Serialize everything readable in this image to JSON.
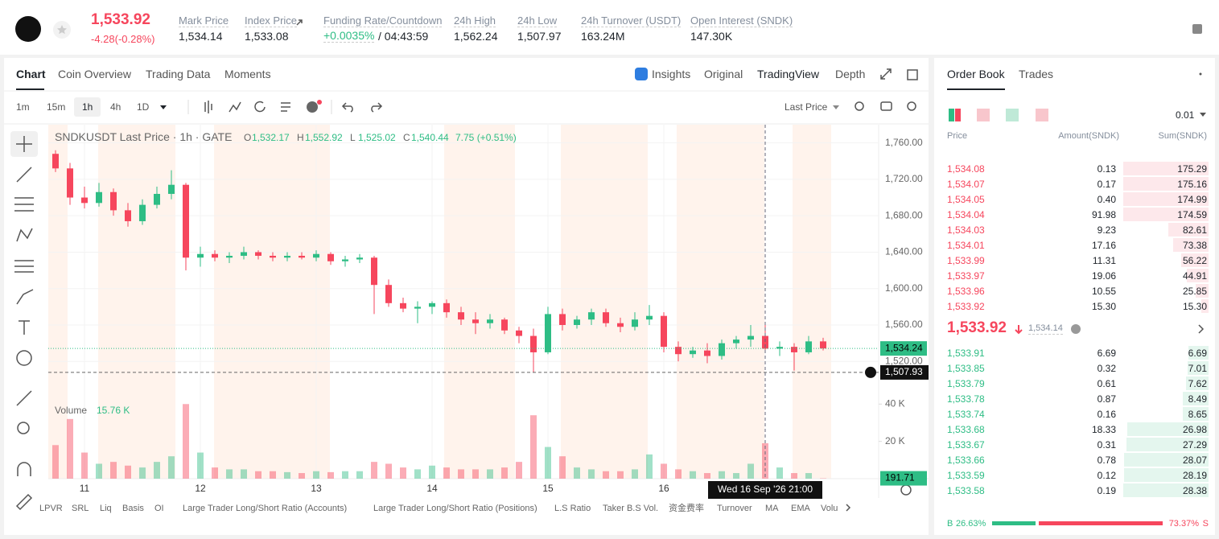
{
  "header": {
    "price": "1,533.92",
    "change": "-4.28(-0.28%)",
    "stats": [
      {
        "label": "Mark Price",
        "value": "1,534.14"
      },
      {
        "label": "Index Price",
        "value": "1,533.08"
      },
      {
        "label": "Funding Rate/Countdown",
        "value": "+0.0035%",
        "extra": "/ 04:43:59"
      },
      {
        "label": "24h High",
        "value": "1,562.24"
      },
      {
        "label": "24h Low",
        "value": "1,507.97"
      },
      {
        "label": "24h Turnover (USDT)",
        "value": "163.24M"
      },
      {
        "label": "Open Interest (SNDK)",
        "value": "147.30K"
      }
    ]
  },
  "chart_tabs": [
    "Chart",
    "Coin Overview",
    "Trading Data",
    "Moments"
  ],
  "view_tabs": [
    "Insights",
    "Original",
    "TradingView",
    "Depth"
  ],
  "intervals": [
    "1m",
    "15m",
    "1h",
    "4h",
    "1D"
  ],
  "price_type": "Last Price",
  "chart_data": {
    "type": "candlestick",
    "legend": {
      "title": "SNDKUSDT Last Price · 1h · GATE",
      "fields": [
        {
          "label": "O",
          "value": "1,532.17"
        },
        {
          "label": "H",
          "value": "1,552.92"
        },
        {
          "label": "L",
          "value": "1,525.02"
        },
        {
          "label": "C",
          "value": "1,540.44"
        }
      ],
      "change": "7.75 (+0.51%)"
    },
    "categories": [
      null,
      null,
      "11",
      null,
      null,
      null,
      null,
      null,
      null,
      null,
      "12",
      null,
      null,
      null,
      null,
      null,
      null,
      null,
      "13",
      null,
      null,
      null,
      null,
      null,
      null,
      null,
      "14",
      null,
      null,
      null,
      null,
      null,
      null,
      null,
      "15",
      null,
      null,
      null,
      null,
      null,
      null,
      null,
      "16",
      null,
      null,
      null,
      null,
      null,
      null,
      null,
      null,
      null,
      null,
      null
    ],
    "open": [
      1748,
      1732,
      1700,
      1694,
      1706,
      1686,
      1674,
      1692,
      1704,
      1714,
      1634,
      1638,
      1634,
      1636,
      1640,
      1636,
      1634,
      1636,
      1634,
      1638,
      1630,
      1632,
      1634,
      1604,
      1584,
      1578,
      1580,
      1584,
      1574,
      1566,
      1562,
      1566,
      1554,
      1548,
      1530,
      1572,
      1560,
      1566,
      1574,
      1562,
      1558,
      1566,
      1570,
      1536,
      1528,
      1532,
      1526,
      1540,
      1544,
      1548,
      1534,
      1536,
      1530,
      1542
    ],
    "high": [
      1752,
      1738,
      1712,
      1716,
      1710,
      1694,
      1698,
      1712,
      1730,
      1716,
      1646,
      1642,
      1640,
      1646,
      1642,
      1640,
      1640,
      1640,
      1642,
      1640,
      1636,
      1638,
      1636,
      1610,
      1590,
      1586,
      1586,
      1588,
      1580,
      1574,
      1572,
      1568,
      1558,
      1556,
      1580,
      1578,
      1570,
      1578,
      1578,
      1568,
      1574,
      1582,
      1574,
      1542,
      1536,
      1540,
      1544,
      1548,
      1560,
      1562,
      1542,
      1540,
      1548,
      1546
    ],
    "low": [
      1728,
      1692,
      1688,
      1690,
      1680,
      1668,
      1670,
      1688,
      1698,
      1620,
      1624,
      1630,
      1628,
      1632,
      1632,
      1630,
      1630,
      1632,
      1630,
      1626,
      1624,
      1628,
      1572,
      1580,
      1574,
      1562,
      1572,
      1568,
      1560,
      1550,
      1556,
      1550,
      1540,
      1508,
      1528,
      1554,
      1556,
      1560,
      1558,
      1552,
      1554,
      1560,
      1530,
      1520,
      1524,
      1518,
      1522,
      1534,
      1536,
      1530,
      1526,
      1510,
      1528,
      1532
    ],
    "close": [
      1732,
      1700,
      1694,
      1706,
      1686,
      1674,
      1692,
      1704,
      1714,
      1634,
      1638,
      1634,
      1636,
      1640,
      1636,
      1634,
      1636,
      1634,
      1638,
      1630,
      1632,
      1634,
      1604,
      1584,
      1578,
      1580,
      1584,
      1574,
      1566,
      1562,
      1566,
      1554,
      1548,
      1530,
      1572,
      1560,
      1566,
      1574,
      1562,
      1558,
      1566,
      1570,
      1536,
      1528,
      1532,
      1526,
      1540,
      1544,
      1548,
      1534,
      1536,
      1530,
      1542,
      1534.24
    ],
    "volume": [
      18000,
      32000,
      14000,
      8000,
      9000,
      7000,
      6000,
      9000,
      12000,
      40000,
      14000,
      6000,
      5000,
      5000,
      4000,
      4000,
      3500,
      3000,
      4000,
      3500,
      4000,
      4000,
      9000,
      8000,
      6000,
      5000,
      7000,
      6000,
      5000,
      5000,
      5000,
      6000,
      9000,
      34000,
      17000,
      12000,
      6000,
      5000,
      4000,
      4000,
      5000,
      13000,
      8000,
      5000,
      4000,
      3000,
      4000,
      3000,
      8000,
      19000,
      6000,
      3000,
      3000,
      191.71
    ],
    "up_color": "#2ebd85",
    "down_color": "#f6465d",
    "ylim": [
      1484,
      1780
    ],
    "yticks": [
      {
        "value": 1520,
        "label": "1,520.00"
      },
      {
        "value": 1560,
        "label": "1,560.00"
      },
      {
        "value": 1600,
        "label": "1,600.00"
      },
      {
        "value": 1640,
        "label": "1,640.00"
      },
      {
        "value": 1680,
        "label": "1,680.00"
      },
      {
        "value": 1720,
        "label": "1,720.00"
      },
      {
        "value": 1760,
        "label": "1,760.00"
      }
    ],
    "grid": true,
    "volume_label": "Volume",
    "volume_value": "15.76 K",
    "volume_ylim": [
      0,
      44000
    ],
    "volume_yticks": [
      {
        "value": 20000,
        "label": "20 K"
      },
      {
        "value": 40000,
        "label": "40 K"
      }
    ],
    "last_price": {
      "value": 1534.24,
      "label": "1,534.24"
    },
    "crosshair": {
      "price": {
        "value": 1507.93,
        "label": "1,507.93"
      },
      "time": "Wed 16 Sep '26 21:00"
    }
  },
  "indicators": [
    "LPVR",
    "SRL",
    "Liq",
    "Basis",
    "OI",
    "Large Trader Long/Short Ratio (Accounts)",
    "Large Trader Long/Short Ratio (Positions)",
    "L.S Ratio",
    "Taker B.S Vol.",
    "资金费率",
    "Turnover",
    "MA",
    "EMA",
    "Volu"
  ],
  "order_book": {
    "tabs": [
      "Order Book",
      "Trades"
    ],
    "precision": "0.01",
    "columns": [
      "Price",
      "Amount(SNDK)",
      "Sum(SNDK)"
    ],
    "asks": [
      [
        "1,534.08",
        "0.13",
        "175.29"
      ],
      [
        "1,534.07",
        "0.17",
        "175.16"
      ],
      [
        "1,534.05",
        "0.40",
        "174.99"
      ],
      [
        "1,534.04",
        "91.98",
        "174.59"
      ],
      [
        "1,534.03",
        "9.23",
        "82.61"
      ],
      [
        "1,534.01",
        "17.16",
        "73.38"
      ],
      [
        "1,533.99",
        "11.31",
        "56.22"
      ],
      [
        "1,533.97",
        "19.06",
        "44.91"
      ],
      [
        "1,533.96",
        "10.55",
        "25.85"
      ],
      [
        "1,533.92",
        "15.30",
        "15.30"
      ]
    ],
    "mid_price": "1,533.92",
    "mark_price": "1,534.14",
    "bids": [
      [
        "1,533.91",
        "6.69",
        "6.69"
      ],
      [
        "1,533.85",
        "0.32",
        "7.01"
      ],
      [
        "1,533.79",
        "0.61",
        "7.62"
      ],
      [
        "1,533.78",
        "0.87",
        "8.49"
      ],
      [
        "1,533.74",
        "0.16",
        "8.65"
      ],
      [
        "1,533.68",
        "18.33",
        "26.98"
      ],
      [
        "1,533.67",
        "0.31",
        "27.29"
      ],
      [
        "1,533.66",
        "0.78",
        "28.07"
      ],
      [
        "1,533.59",
        "0.12",
        "28.19"
      ],
      [
        "1,533.58",
        "0.19",
        "28.38"
      ]
    ],
    "buy_label": "B",
    "buy_ratio": "26.63%",
    "sell_ratio": "73.37%",
    "sell_label": "S"
  }
}
